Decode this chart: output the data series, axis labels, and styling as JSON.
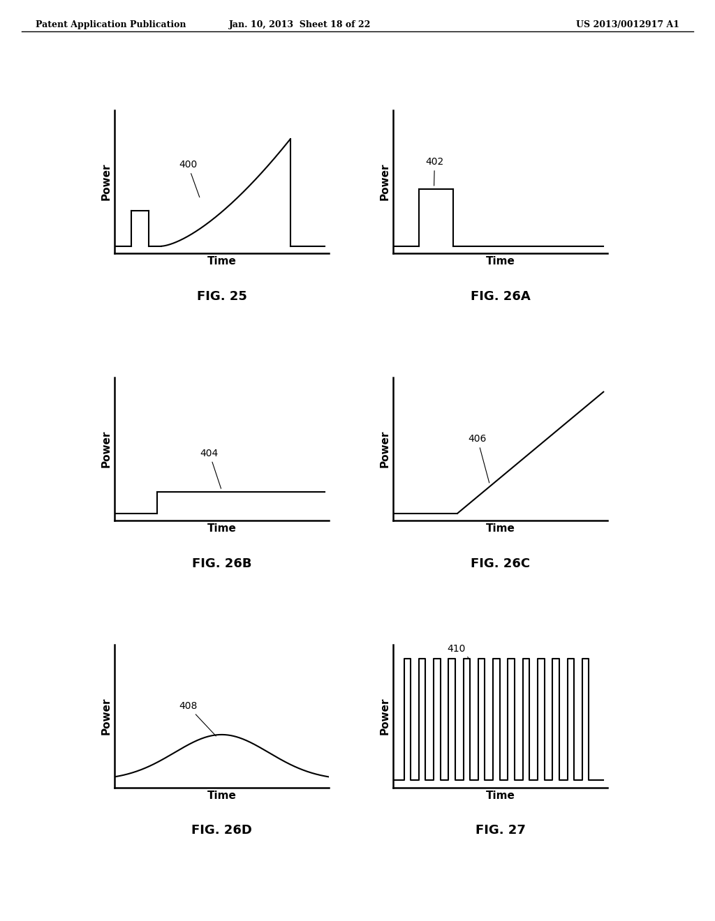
{
  "header_left": "Patent Application Publication",
  "header_mid": "Jan. 10, 2013  Sheet 18 of 22",
  "header_right": "US 2013/0012917 A1",
  "background_color": "#ffffff",
  "line_color": "#000000",
  "plots": [
    {
      "id": "fig25",
      "label": "FIG. 25",
      "annotation": "400",
      "row": 0,
      "col": 0,
      "type": "pulse_then_ramp_drop",
      "xlabel": "Time",
      "ylabel": "Power"
    },
    {
      "id": "fig26a",
      "label": "FIG. 26A",
      "annotation": "402",
      "row": 0,
      "col": 1,
      "type": "single_pulse",
      "xlabel": "Time",
      "ylabel": "Power"
    },
    {
      "id": "fig26b",
      "label": "FIG. 26B",
      "annotation": "404",
      "row": 1,
      "col": 0,
      "type": "step_flat",
      "xlabel": "Time",
      "ylabel": "Power"
    },
    {
      "id": "fig26c",
      "label": "FIG. 26C",
      "annotation": "406",
      "row": 1,
      "col": 1,
      "type": "ramp_up",
      "xlabel": "Time",
      "ylabel": "Power"
    },
    {
      "id": "fig26d",
      "label": "FIG. 26D",
      "annotation": "408",
      "row": 2,
      "col": 0,
      "type": "bell_curve",
      "xlabel": "Time",
      "ylabel": "Power"
    },
    {
      "id": "fig27",
      "label": "FIG. 27",
      "annotation": "410",
      "row": 2,
      "col": 1,
      "type": "pulse_train",
      "xlabel": "Time",
      "ylabel": "Power"
    }
  ]
}
